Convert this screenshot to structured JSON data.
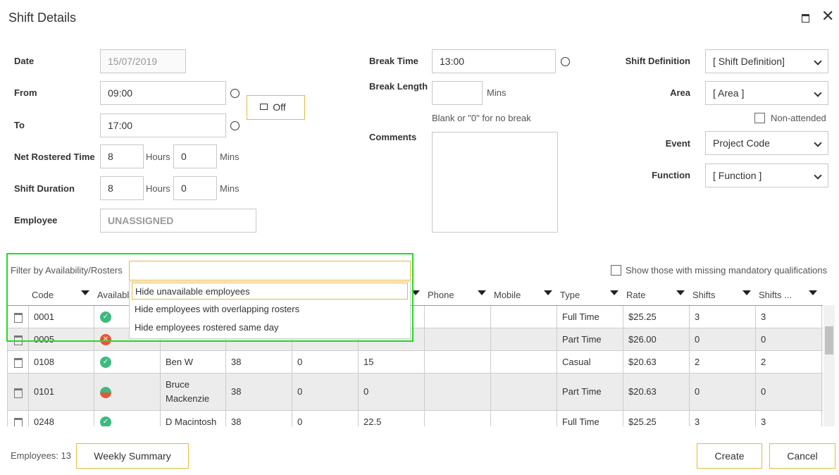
{
  "header": {
    "title": "Shift Details"
  },
  "form": {
    "date": {
      "label": "Date",
      "value": "15/07/2019"
    },
    "from": {
      "label": "From",
      "value": "09:00"
    },
    "to": {
      "label": "To",
      "value": "17:00"
    },
    "lock": "Off",
    "net_rostered": {
      "label": "Net Rostered Time",
      "hours": "8",
      "hours_unit": "Hours",
      "mins": "0",
      "mins_unit": "Mins"
    },
    "shift_duration": {
      "label": "Shift Duration",
      "hours": "8",
      "hours_unit": "Hours",
      "mins": "0",
      "mins_unit": "Mins"
    },
    "employee": {
      "label": "Employee",
      "value": "UNASSIGNED"
    },
    "break_time": {
      "label": "Break Time",
      "value": "13:00"
    },
    "break_length": {
      "label": "Break Length",
      "unit": "Mins",
      "hint": "Blank or \"0\" for no break"
    },
    "comments": {
      "label": "Comments"
    },
    "shift_definition": {
      "label": "Shift Definition",
      "value": "[ Shift Definition]"
    },
    "area": {
      "label": "Area",
      "value": "[ Area ]"
    },
    "non_attended": "Non-attended",
    "event": {
      "label": "Event",
      "value": "Project Code"
    },
    "function": {
      "label": "Function",
      "value": "[ Function ]"
    }
  },
  "filter": {
    "label": "Filter by Availability/Rosters",
    "options": [
      "Hide unavailable employees",
      "Hide employees with overlapping rosters",
      "Hide employees rostered same day"
    ]
  },
  "missing_quals": "Show those with missing mandatory qualifications",
  "table": {
    "columns": [
      "Code",
      "Availabl",
      null,
      null,
      null,
      null,
      "Phone",
      "Mobile",
      "Type",
      "Rate",
      "Shifts",
      "Shifts ..."
    ],
    "rows": [
      {
        "availability": [
          "#3dba7f"
        ],
        "cells": [
          "0001",
          null,
          null,
          null,
          null,
          null,
          null,
          null,
          "Full Time",
          "$25.25",
          "3",
          "3"
        ]
      },
      {
        "availability": [
          "#e8553a"
        ],
        "cells": [
          "0005",
          null,
          null,
          null,
          null,
          null,
          null,
          null,
          "Part Time",
          "$26.00",
          "0",
          "0"
        ]
      },
      {
        "availability": [
          "#3dba7f"
        ],
        "cells": [
          "0108",
          null,
          "Ben W",
          "38",
          "0",
          "15",
          null,
          null,
          "Casual",
          "$20.63",
          "2",
          "2"
        ]
      },
      {
        "availability": [
          "#3dba7f",
          "#e8553a"
        ],
        "cells": [
          "0101",
          null,
          "Bruce Mackenzie",
          "38",
          "0",
          "0",
          null,
          null,
          "Part Time",
          "$20.63",
          "0",
          "0"
        ]
      },
      {
        "availability": [
          "#3dba7f"
        ],
        "cells": [
          "0248",
          null,
          "D Macintosh",
          "38",
          "0",
          "22.5",
          null,
          null,
          "Full Time",
          "$25.25",
          "3",
          "3"
        ]
      }
    ]
  },
  "footer": {
    "count": "Employees: 13",
    "weekly_summary": "Weekly Summary",
    "create": "Create",
    "cancel": "Cancel"
  }
}
